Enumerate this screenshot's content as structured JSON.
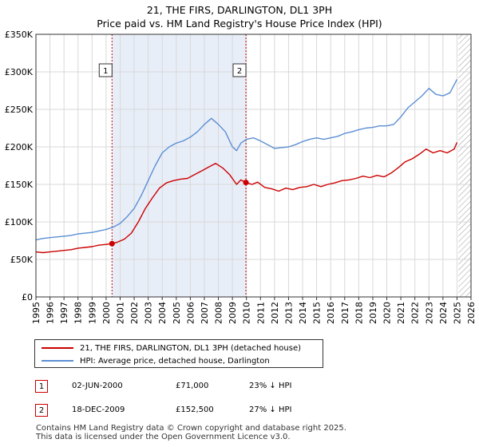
{
  "title_line1": "21, THE FIRS, DARLINGTON, DL1 3PH",
  "title_line2": "Price paid vs. HM Land Registry's House Price Index (HPI)",
  "colors": {
    "price": "#cc0000",
    "hpi": "#5b8fd4",
    "shade": "#e8eef8",
    "grid": "#d8d8d8"
  },
  "legend": {
    "price_label": "21, THE FIRS, DARLINGTON, DL1 3PH (detached house)",
    "hpi_label": "HPI: Average price, detached house, Darlington"
  },
  "sales": [
    {
      "num": "1",
      "date": "02-JUN-2000",
      "price": "£71,000",
      "hpi_diff": "23% ↓ HPI"
    },
    {
      "num": "2",
      "date": "18-DEC-2009",
      "price": "£152,500",
      "hpi_diff": "27% ↓ HPI"
    }
  ],
  "footer": {
    "line1": "Contains HM Land Registry data © Crown copyright and database right 2025.",
    "line2": "This data is licensed under the Open Government Licence v3.0."
  },
  "chart_data": {
    "type": "line",
    "xlim": [
      1995,
      2026
    ],
    "ylim": [
      0,
      350000
    ],
    "y_ticks": [
      {
        "value": 0,
        "label": "£0"
      },
      {
        "value": 50000,
        "label": "£50K"
      },
      {
        "value": 100000,
        "label": "£100K"
      },
      {
        "value": 150000,
        "label": "£150K"
      },
      {
        "value": 200000,
        "label": "£200K"
      },
      {
        "value": 250000,
        "label": "£250K"
      },
      {
        "value": 300000,
        "label": "£300K"
      },
      {
        "value": 350000,
        "label": "£350K"
      }
    ],
    "x_ticks": [
      "1995",
      "1996",
      "1997",
      "1998",
      "1999",
      "2000",
      "2001",
      "2002",
      "2003",
      "2004",
      "2005",
      "2006",
      "2007",
      "2008",
      "2009",
      "2010",
      "2011",
      "2012",
      "2013",
      "2014",
      "2015",
      "2016",
      "2017",
      "2018",
      "2019",
      "2020",
      "2021",
      "2022",
      "2023",
      "2024",
      "2025",
      "2026"
    ],
    "shaded_ranges": [
      [
        2000.42,
        2009.96
      ]
    ],
    "hatched_from": 2025.1,
    "markers": [
      {
        "label": "1",
        "x": 2000.42,
        "y": 71000
      },
      {
        "label": "2",
        "x": 2009.96,
        "y": 152500
      }
    ],
    "series": [
      {
        "name": "21, THE FIRS, DARLINGTON, DL1 3PH (detached house)",
        "x": [
          1995,
          1995.5,
          1996,
          1996.5,
          1997,
          1997.5,
          1998,
          1998.5,
          1999,
          1999.5,
          2000,
          2000.42,
          2000.8,
          2001.3,
          2001.8,
          2002.3,
          2002.8,
          2003.3,
          2003.8,
          2004.3,
          2004.8,
          2005.3,
          2005.8,
          2006.3,
          2006.8,
          2007.3,
          2007.8,
          2008.3,
          2008.8,
          2009.3,
          2009.6,
          2009.96,
          2010.4,
          2010.8,
          2011.3,
          2011.8,
          2012.3,
          2012.8,
          2013.3,
          2013.8,
          2014.3,
          2014.8,
          2015.3,
          2015.8,
          2016.3,
          2016.8,
          2017.3,
          2017.8,
          2018.3,
          2018.8,
          2019.3,
          2019.8,
          2020.3,
          2020.8,
          2021.3,
          2021.8,
          2022.3,
          2022.8,
          2023.3,
          2023.8,
          2024.3,
          2024.8,
          2025.0
        ],
        "values": [
          60000,
          59000,
          60000,
          61000,
          62000,
          63000,
          65000,
          66000,
          67000,
          69000,
          70000,
          71000,
          73000,
          77000,
          85000,
          100000,
          118000,
          132000,
          145000,
          152000,
          155000,
          157000,
          158000,
          163000,
          168000,
          173000,
          178000,
          172000,
          163000,
          150000,
          156000,
          152500,
          150000,
          153000,
          146000,
          144000,
          141000,
          145000,
          143000,
          146000,
          147000,
          150000,
          147000,
          150000,
          152000,
          155000,
          156000,
          158000,
          161000,
          159000,
          162000,
          160000,
          165000,
          172000,
          180000,
          184000,
          190000,
          197000,
          192000,
          195000,
          192000,
          197000,
          206000
        ]
      },
      {
        "name": "HPI: Average price, detached house, Darlington",
        "x": [
          1995,
          1995.5,
          1996,
          1996.5,
          1997,
          1997.5,
          1998,
          1998.5,
          1999,
          1999.5,
          2000,
          2000.5,
          2001,
          2001.5,
          2002,
          2002.5,
          2003,
          2003.5,
          2004,
          2004.5,
          2005,
          2005.5,
          2006,
          2006.5,
          2007,
          2007.5,
          2008,
          2008.5,
          2009,
          2009.3,
          2009.6,
          2010,
          2010.5,
          2011,
          2011.5,
          2012,
          2012.5,
          2013,
          2013.5,
          2014,
          2014.5,
          2015,
          2015.5,
          2016,
          2016.5,
          2017,
          2017.5,
          2018,
          2018.5,
          2019,
          2019.5,
          2020,
          2020.5,
          2021,
          2021.5,
          2022,
          2022.5,
          2023,
          2023.5,
          2024,
          2024.5,
          2025.0
        ],
        "values": [
          76000,
          78000,
          79000,
          80000,
          81000,
          82000,
          84000,
          85000,
          86000,
          88000,
          90000,
          93000,
          98000,
          107000,
          118000,
          135000,
          155000,
          175000,
          192000,
          200000,
          205000,
          208000,
          213000,
          220000,
          230000,
          238000,
          230000,
          220000,
          200000,
          195000,
          205000,
          210000,
          212000,
          208000,
          203000,
          198000,
          199000,
          200000,
          203000,
          207000,
          210000,
          212000,
          210000,
          212000,
          214000,
          218000,
          220000,
          223000,
          225000,
          226000,
          228000,
          228000,
          230000,
          240000,
          252000,
          260000,
          268000,
          278000,
          270000,
          268000,
          272000,
          290000
        ]
      }
    ]
  }
}
